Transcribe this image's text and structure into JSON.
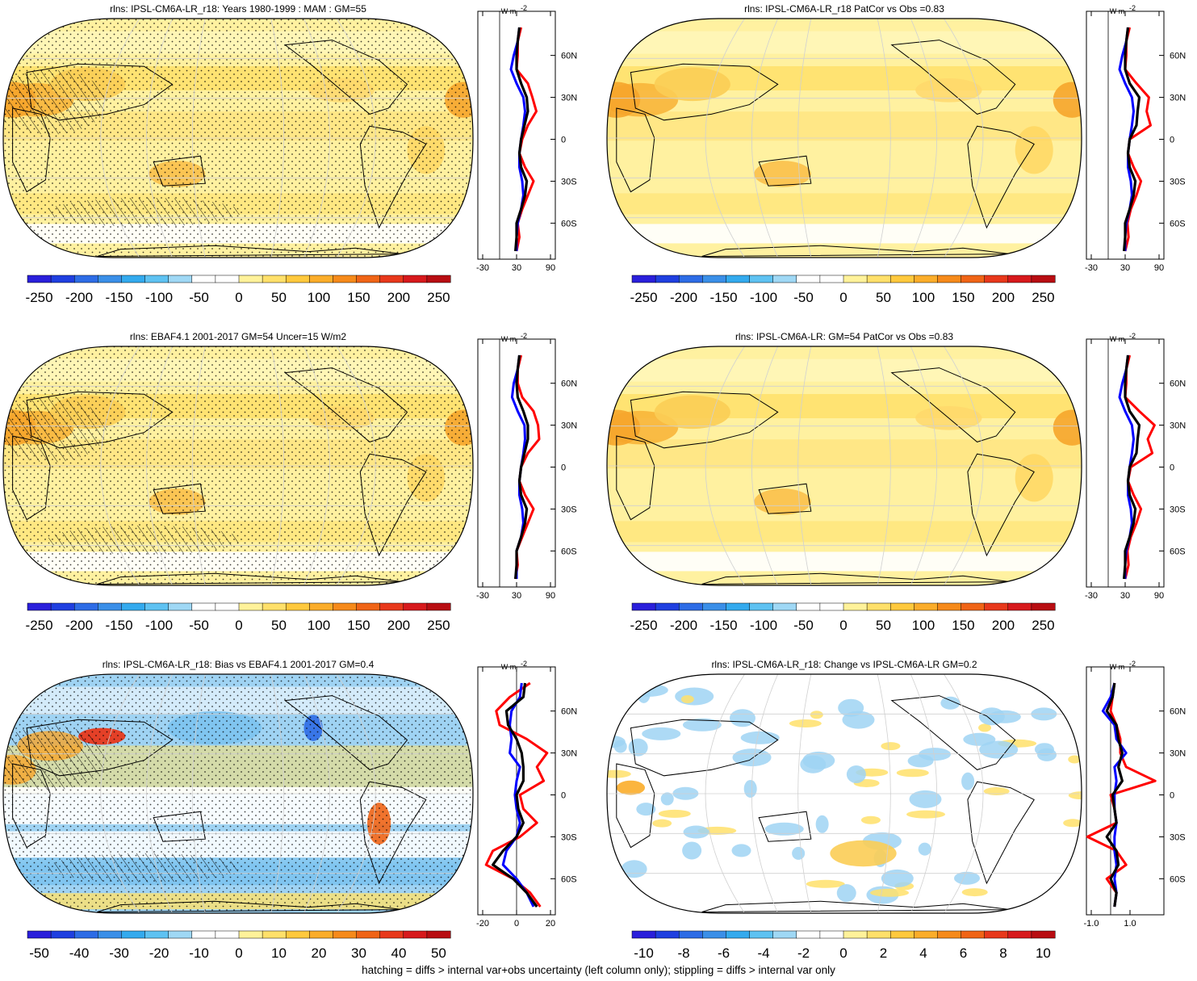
{
  "footer": "hatching = diffs > internal var+obs uncertainty (left column only); stippling = diffs > internal var only",
  "colors": {
    "model_line": "#ff0000",
    "obs_line": "#0000ff",
    "mean_line": "#000000",
    "continent_outline": "#000000",
    "graticule": "#d0d0d0"
  },
  "chart_data": [
    {
      "type": "heatmap",
      "panel": "map",
      "title": "rlns: IPSL-CM6A-LR_r18: Years 1980-1999 : MAM : GM=55",
      "projection": "Robinson",
      "central_longitude": 180,
      "stippling": true,
      "hatching": true,
      "colorbar": {
        "type": "abs",
        "labels": [
          "-250",
          "-200",
          "-150",
          "-100",
          "-50",
          "0",
          "50",
          "100",
          "150",
          "200",
          "250"
        ]
      }
    },
    {
      "type": "line",
      "panel": "zonal_mean",
      "unit": "W m-2",
      "xticks": [
        "-30",
        "30",
        "90"
      ],
      "xlim": [
        -30,
        90
      ],
      "yticks": [
        "60N",
        "30N",
        "0",
        "30S",
        "60S"
      ],
      "ylim": [
        -80,
        80
      ],
      "latitudes": [
        80,
        70,
        60,
        50,
        40,
        30,
        20,
        10,
        0,
        -10,
        -20,
        -30,
        -40,
        -50,
        -60,
        -70,
        -80
      ],
      "series": [
        {
          "values": [
            38,
            32,
            32,
            30,
            50,
            58,
            65,
            50,
            40,
            35,
            45,
            60,
            50,
            40,
            32,
            35,
            30
          ]
        },
        {
          "values": [
            35,
            32,
            25,
            20,
            30,
            42,
            45,
            42,
            38,
            35,
            35,
            40,
            42,
            38,
            32,
            30,
            30
          ]
        },
        {
          "values": [
            35,
            32,
            30,
            30,
            38,
            48,
            50,
            44,
            38,
            35,
            38,
            48,
            45,
            38,
            30,
            30,
            28
          ]
        }
      ]
    },
    {
      "type": "heatmap",
      "panel": "map",
      "title": "rlns: IPSL-CM6A-LR_r18 PatCor vs Obs =0.83",
      "projection": "Robinson",
      "central_longitude": 180,
      "stippling": false,
      "hatching": false,
      "colorbar": {
        "type": "abs",
        "labels": [
          "-250",
          "-200",
          "-150",
          "-100",
          "-50",
          "0",
          "50",
          "100",
          "150",
          "200",
          "250"
        ]
      }
    },
    {
      "type": "line",
      "panel": "zonal_mean",
      "unit": "W m-2",
      "xticks": [
        "-30",
        "30",
        "90"
      ],
      "xlim": [
        -30,
        90
      ],
      "yticks": [
        "60N",
        "30N",
        "0",
        "30S",
        "60S"
      ],
      "ylim": [
        -80,
        80
      ],
      "latitudes": [
        80,
        70,
        60,
        50,
        40,
        30,
        20,
        10,
        0,
        -10,
        -20,
        -30,
        -40,
        -50,
        -60,
        -70,
        -80
      ],
      "series": [
        {
          "values": [
            38,
            32,
            32,
            30,
            50,
            72,
            68,
            75,
            38,
            35,
            45,
            58,
            50,
            40,
            34,
            36,
            30
          ]
        },
        {
          "values": [
            35,
            32,
            25,
            20,
            30,
            42,
            45,
            42,
            38,
            35,
            35,
            40,
            42,
            38,
            32,
            30,
            30
          ]
        },
        {
          "values": [
            35,
            32,
            30,
            30,
            38,
            55,
            52,
            50,
            38,
            35,
            38,
            48,
            45,
            38,
            30,
            30,
            28
          ]
        }
      ]
    },
    {
      "type": "heatmap",
      "panel": "map",
      "title": "rlns: EBAF4.1 2001-2017 GM=54 Uncer=15 W/m2",
      "projection": "Robinson",
      "central_longitude": 180,
      "stippling": true,
      "hatching": true,
      "colorbar": {
        "type": "abs",
        "labels": [
          "-250",
          "-200",
          "-150",
          "-100",
          "-50",
          "0",
          "50",
          "100",
          "150",
          "200",
          "250"
        ]
      }
    },
    {
      "type": "line",
      "panel": "zonal_mean",
      "unit": "W m-2",
      "xticks": [
        "-30",
        "30",
        "90"
      ],
      "xlim": [
        -30,
        90
      ],
      "yticks": [
        "60N",
        "30N",
        "0",
        "30S",
        "60S"
      ],
      "ylim": [
        -80,
        80
      ],
      "latitudes": [
        80,
        70,
        60,
        50,
        40,
        30,
        20,
        10,
        0,
        -10,
        -20,
        -30,
        -40,
        -50,
        -60,
        -70,
        -80
      ],
      "series": [
        {
          "values": [
            38,
            32,
            32,
            40,
            60,
            68,
            70,
            50,
            38,
            35,
            45,
            60,
            50,
            40,
            30,
            32,
            28
          ]
        },
        {
          "values": [
            35,
            32,
            25,
            22,
            32,
            44,
            45,
            42,
            38,
            35,
            35,
            40,
            42,
            38,
            30,
            30,
            30
          ]
        },
        {
          "values": [
            35,
            32,
            30,
            32,
            42,
            50,
            50,
            44,
            38,
            35,
            38,
            48,
            45,
            38,
            30,
            30,
            28
          ]
        }
      ]
    },
    {
      "type": "heatmap",
      "panel": "map",
      "title": "rlns: IPSL-CM6A-LR: GM=54 PatCor vs Obs =0.83",
      "projection": "Robinson",
      "central_longitude": 180,
      "stippling": false,
      "hatching": false,
      "colorbar": {
        "type": "abs",
        "labels": [
          "-250",
          "-200",
          "-150",
          "-100",
          "-50",
          "0",
          "50",
          "100",
          "150",
          "200",
          "250"
        ]
      }
    },
    {
      "type": "line",
      "panel": "zonal_mean",
      "unit": "W m-2",
      "xticks": [
        "-30",
        "30",
        "90"
      ],
      "xlim": [
        -30,
        90
      ],
      "yticks": [
        "60N",
        "30N",
        "0",
        "30S",
        "60S"
      ],
      "ylim": [
        -80,
        80
      ],
      "latitudes": [
        80,
        70,
        60,
        50,
        40,
        30,
        20,
        10,
        0,
        -10,
        -20,
        -30,
        -40,
        -50,
        -60,
        -70,
        -80
      ],
      "series": [
        {
          "values": [
            38,
            32,
            32,
            30,
            55,
            82,
            70,
            78,
            40,
            35,
            45,
            58,
            50,
            40,
            34,
            36,
            30
          ]
        },
        {
          "values": [
            35,
            32,
            25,
            20,
            30,
            42,
            45,
            42,
            38,
            35,
            35,
            40,
            42,
            38,
            32,
            30,
            30
          ]
        },
        {
          "values": [
            35,
            32,
            30,
            30,
            38,
            55,
            52,
            50,
            38,
            35,
            38,
            48,
            45,
            38,
            30,
            30,
            28
          ]
        }
      ]
    },
    {
      "type": "heatmap",
      "panel": "map",
      "title": "rlns: IPSL-CM6A-LR_r18: Bias vs EBAF4.1 2001-2017 GM=0.4",
      "projection": "Robinson",
      "central_longitude": 180,
      "stippling": true,
      "hatching": true,
      "colorbar": {
        "type": "bias",
        "labels": [
          "-50",
          "-40",
          "-30",
          "-20",
          "-10",
          "0",
          "10",
          "20",
          "30",
          "40",
          "50"
        ]
      }
    },
    {
      "type": "line",
      "panel": "zonal_mean",
      "unit": "W m-2",
      "xticks": [
        "-20",
        "0",
        "20"
      ],
      "xlim": [
        -20,
        20
      ],
      "yticks": [
        "60N",
        "30N",
        "0",
        "30S",
        "60S"
      ],
      "ylim": [
        -80,
        80
      ],
      "latitudes": [
        80,
        70,
        60,
        50,
        40,
        30,
        20,
        10,
        0,
        -10,
        -20,
        -30,
        -40,
        -50,
        -60,
        -70,
        -80
      ],
      "series": [
        {
          "values": [
            8,
            -4,
            -12,
            -10,
            6,
            18,
            12,
            16,
            2,
            4,
            12,
            2,
            -14,
            -18,
            -2,
            8,
            14
          ]
        },
        {
          "values": [
            3,
            2,
            -3,
            -4,
            -3,
            -4,
            2,
            0,
            -1,
            0,
            2,
            0,
            -6,
            -8,
            0,
            6,
            10
          ]
        },
        {
          "values": [
            5,
            4,
            -6,
            -5,
            0,
            3,
            4,
            4,
            0,
            1,
            4,
            0,
            -8,
            -14,
            -2,
            6,
            12
          ]
        }
      ]
    },
    {
      "type": "heatmap",
      "panel": "map",
      "title": "rlns: IPSL-CM6A-LR_r18: Change vs IPSL-CM6A-LR GM=0.2",
      "projection": "Robinson",
      "central_longitude": 180,
      "stippling": false,
      "hatching": false,
      "colorbar": {
        "type": "change",
        "labels": [
          "-10",
          "-8",
          "-6",
          "-4",
          "-2",
          "0",
          "2",
          "4",
          "6",
          "8",
          "10"
        ]
      }
    },
    {
      "type": "line",
      "panel": "zonal_mean",
      "unit": "W m-2",
      "xticks": [
        "-1.0",
        "1.0"
      ],
      "xlim": [
        -1.0,
        2.5
      ],
      "yticks": [
        "60N",
        "30N",
        "0",
        "30S",
        "60S"
      ],
      "ylim": [
        -80,
        80
      ],
      "latitudes": [
        80,
        70,
        60,
        50,
        40,
        30,
        20,
        10,
        0,
        -10,
        -20,
        -30,
        -40,
        -50,
        -60,
        -70,
        -80
      ],
      "series": [
        {
          "values": [
            0.2,
            0.1,
            0.0,
            0.3,
            0.5,
            0.5,
            0.8,
            2.3,
            0.0,
            0.2,
            0.3,
            -1.2,
            0.3,
            0.8,
            -0.2,
            0.3,
            0.2
          ]
        },
        {
          "values": [
            0.2,
            0.0,
            -0.4,
            0.2,
            0.3,
            0.8,
            0.2,
            0.3,
            0.2,
            0.2,
            0.3,
            0.2,
            0.2,
            0.3,
            0.2,
            0.3,
            0.2
          ]
        },
        {
          "values": [
            0.2,
            0.1,
            -0.2,
            0.3,
            0.4,
            0.6,
            0.4,
            0.6,
            0.1,
            0.2,
            0.3,
            -0.2,
            0.3,
            0.4,
            0.0,
            0.3,
            0.2
          ]
        }
      ]
    }
  ]
}
